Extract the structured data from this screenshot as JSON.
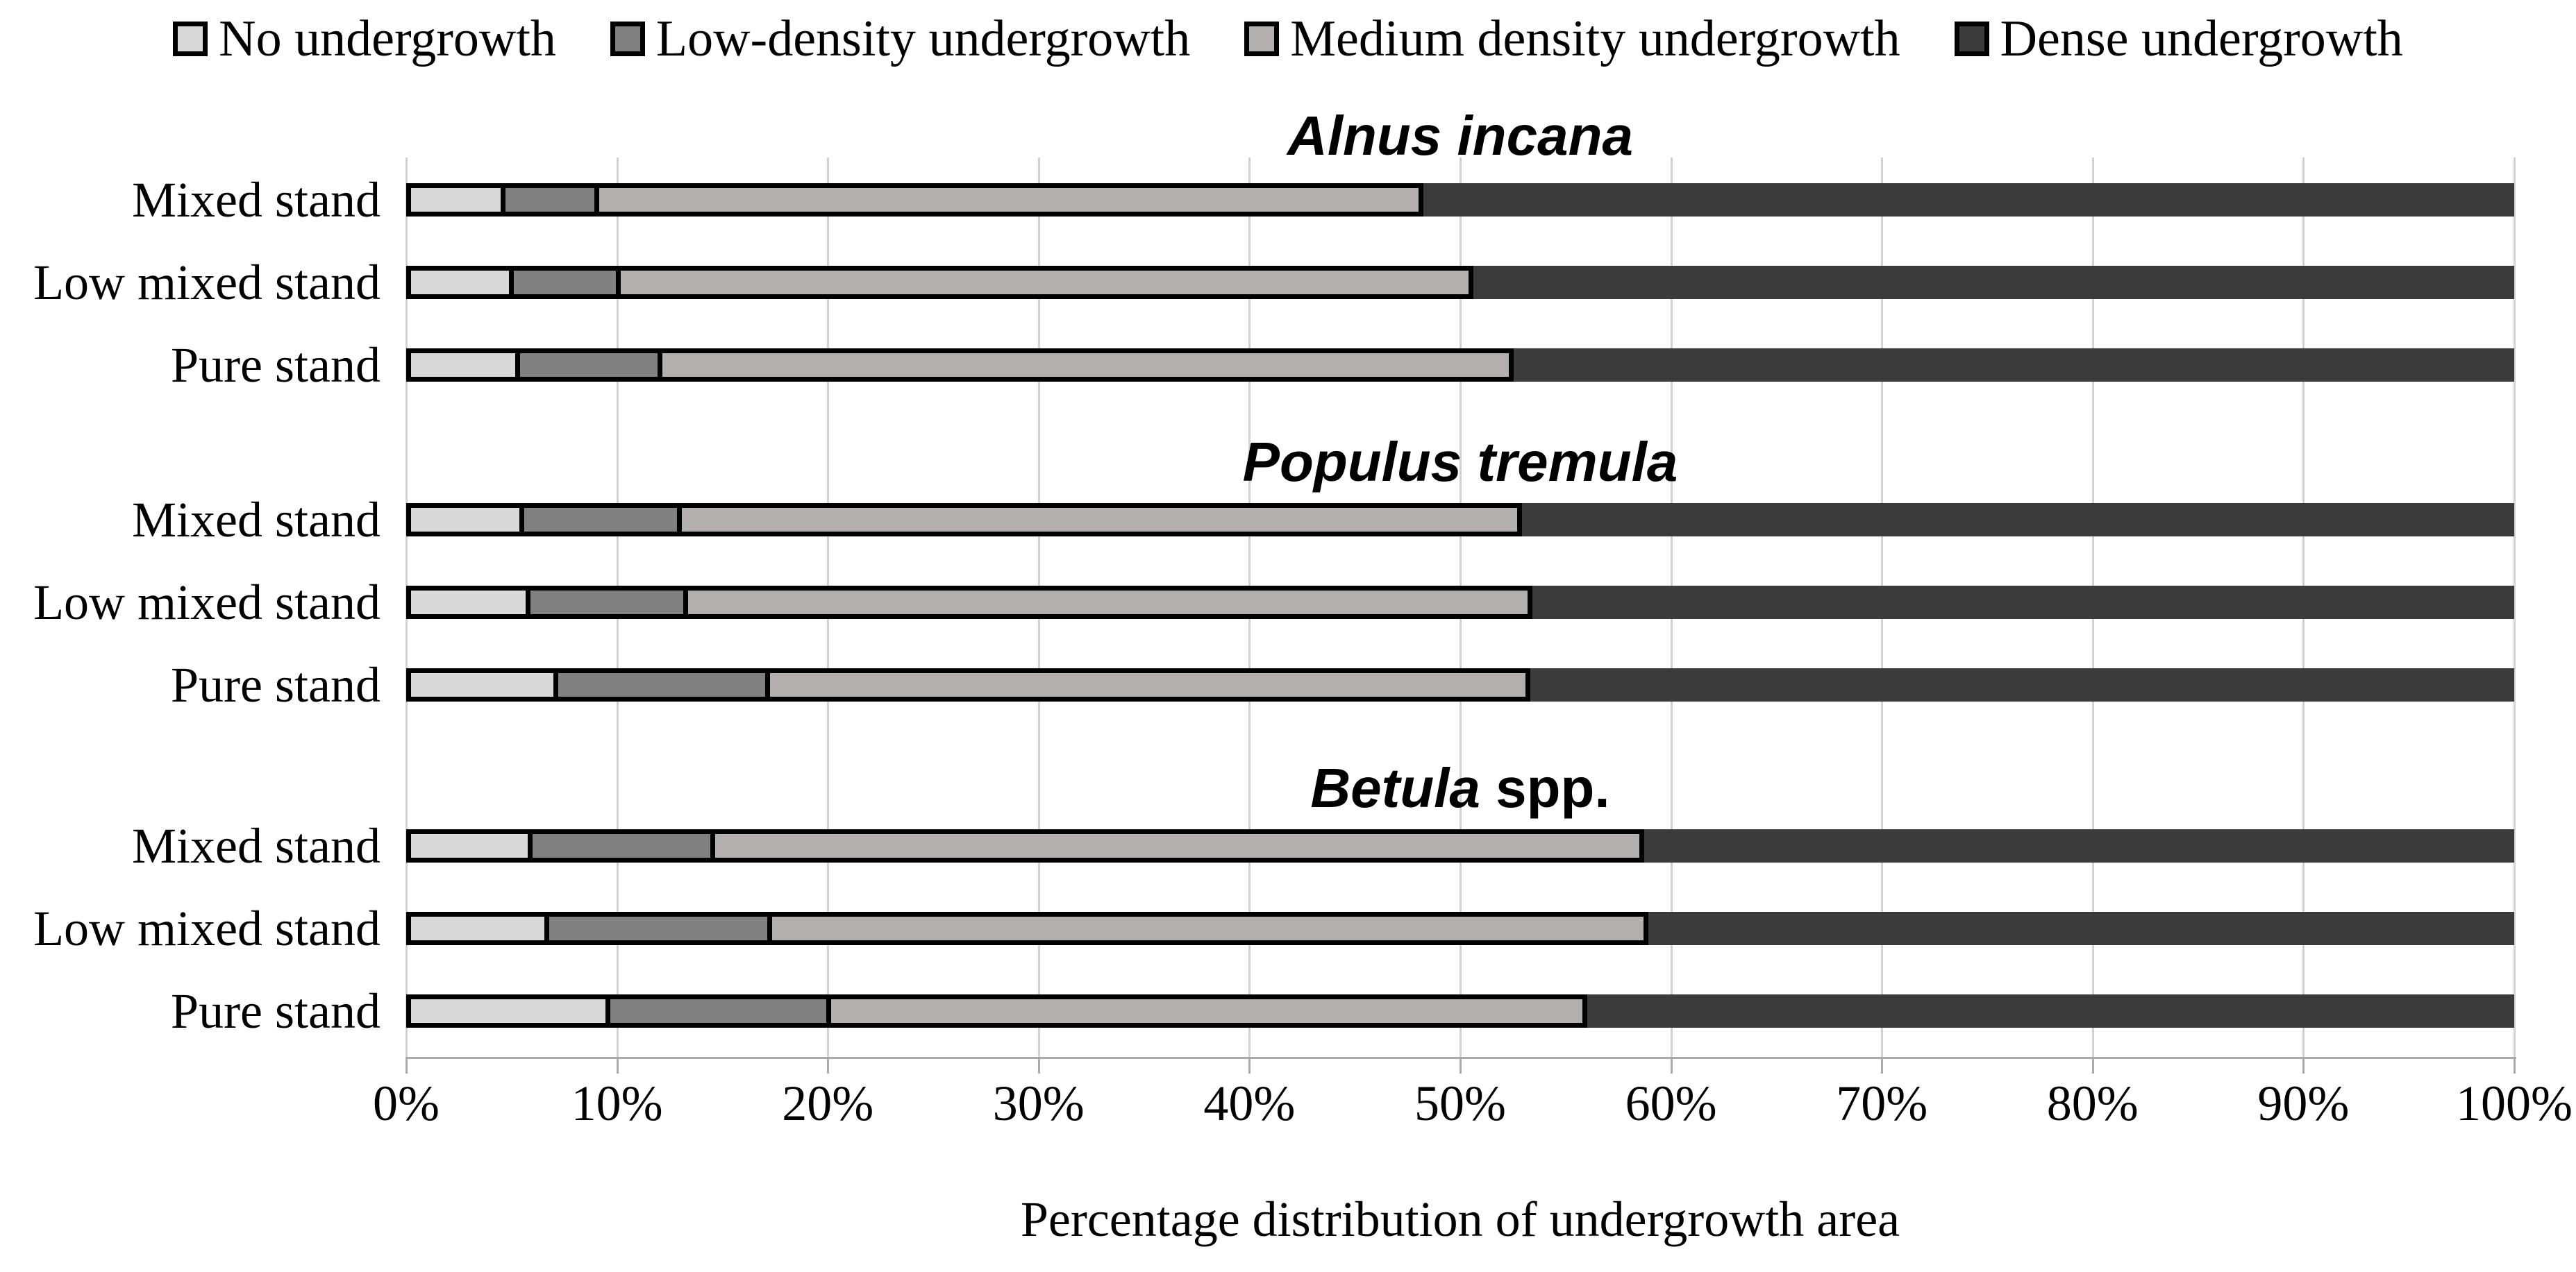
{
  "legend": {
    "items": [
      {
        "label": "No undergrowth",
        "color": "#d9d9d9"
      },
      {
        "label": "Low-density undergrowth",
        "color": "#808080"
      },
      {
        "label": "Medium density undergrowth",
        "color": "#b3afaf"
      },
      {
        "label": "Dense undergrowth",
        "color": "#3b3b3b"
      }
    ]
  },
  "chart_data": {
    "type": "bar",
    "variant": "horizontal-stacked-100percent",
    "xlabel": "Percentage distribution of undergrowth area",
    "xlim": [
      0,
      100
    ],
    "x_ticks": [
      "0%",
      "10%",
      "20%",
      "30%",
      "40%",
      "50%",
      "60%",
      "70%",
      "80%",
      "90%",
      "100%"
    ],
    "grid": "vertical light-gray gridlines every 10%",
    "legend_position": "top",
    "series_names": [
      "No undergrowth",
      "Low-density undergrowth",
      "Medium density undergrowth",
      "Dense undergrowth"
    ],
    "series_colors": [
      "#d9d9d9",
      "#808080",
      "#b3afaf",
      "#3b3b3b"
    ],
    "groups": [
      {
        "title_italic": "Alnus incana",
        "title_plain": "",
        "rows": [
          {
            "label": "Mixed stand",
            "values": [
              4.7,
              4.7,
              39.3,
              51.3
            ]
          },
          {
            "label": "Low mixed stand",
            "values": [
              5.1,
              5.3,
              40.7,
              48.9
            ]
          },
          {
            "label": "Pure stand",
            "values": [
              5.4,
              7.0,
              40.6,
              47.0
            ]
          }
        ]
      },
      {
        "title_italic": "Populus tremula",
        "title_plain": "",
        "rows": [
          {
            "label": "Mixed stand",
            "values": [
              5.6,
              7.7,
              40.1,
              46.6
            ]
          },
          {
            "label": "Low mixed stand",
            "values": [
              5.9,
              7.7,
              40.3,
              46.1
            ]
          },
          {
            "label": "Pure stand",
            "values": [
              7.2,
              10.3,
              36.3,
              46.2
            ]
          }
        ]
      },
      {
        "title_italic": "Betula",
        "title_plain": " spp.",
        "rows": [
          {
            "label": "Mixed stand",
            "values": [
              6.0,
              8.9,
              44.3,
              40.8
            ]
          },
          {
            "label": "Low mixed stand",
            "values": [
              6.8,
              10.8,
              41.8,
              40.6
            ]
          },
          {
            "label": "Pure stand",
            "values": [
              9.7,
              10.7,
              36.1,
              43.5
            ]
          }
        ]
      }
    ]
  }
}
